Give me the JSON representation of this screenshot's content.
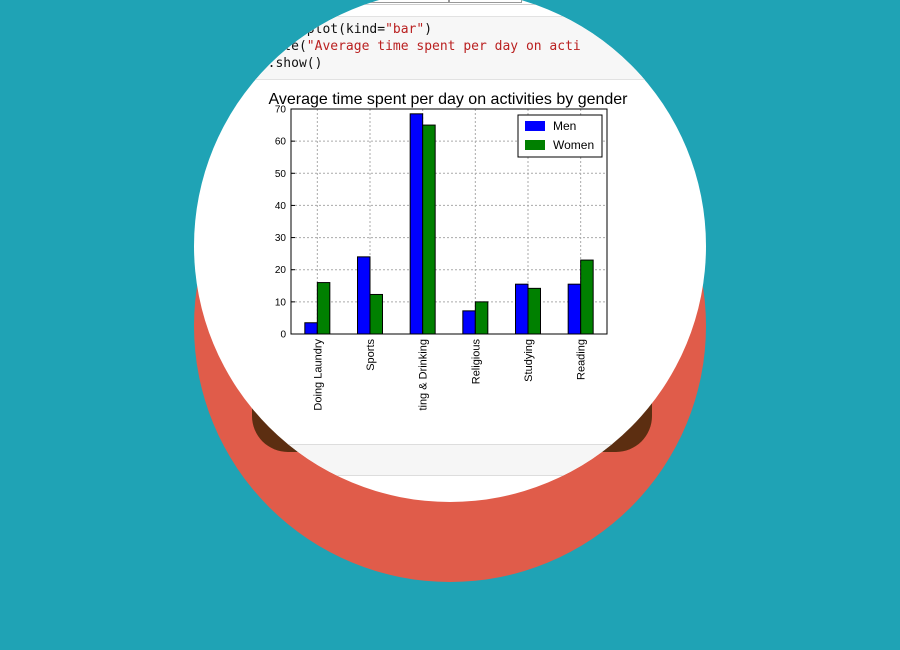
{
  "code": {
    "line1_prefix": "men_df.plot(kind=",
    "line1_string": "\"bar\"",
    "line1_suffix": ")",
    "line2_prefix": ".title(",
    "line2_string": "\"Average time spent per day on acti",
    "line3": "lt.show()"
  },
  "colors": {
    "background": "#1fa3b5",
    "circle_red": "#e05c4a",
    "men": "#0000ff",
    "women": "#008000"
  },
  "chart_data": {
    "type": "bar",
    "title": "Average time spent per day on activities by gender",
    "categories": [
      "Doing Laundry",
      "Sports",
      "Eating & Drinking",
      "Religious",
      "Studying",
      "Reading"
    ],
    "category_labels_visible": [
      "Doing Laundry",
      "Sports",
      "ting & Drinking",
      "Religious",
      "Studying",
      "Reading"
    ],
    "series": [
      {
        "name": "Men",
        "values": [
          3.5,
          24,
          68.5,
          7.2,
          15.5,
          15.5
        ]
      },
      {
        "name": "Women",
        "values": [
          16,
          12.3,
          65,
          10,
          14.2,
          23
        ]
      }
    ],
    "yticks": [
      0,
      10,
      20,
      30,
      40,
      50,
      60,
      70
    ],
    "ylim": [
      0,
      70
    ],
    "grid": true,
    "legend_position": "top-right",
    "xlabel": "",
    "ylabel": ""
  }
}
